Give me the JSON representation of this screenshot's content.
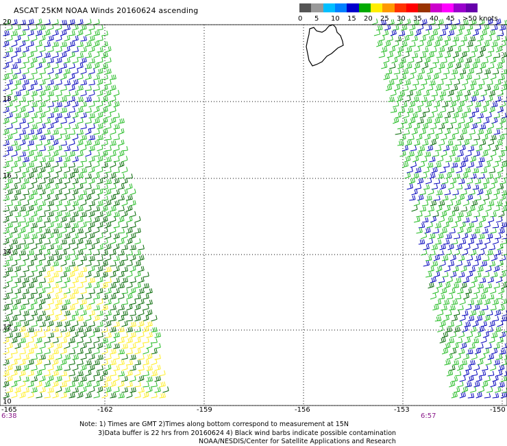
{
  "title": "ASCAT 25KM NOAA Winds 20160624 ascending",
  "color_scale": {
    "labels": [
      "0",
      "5",
      "10",
      "15",
      "20",
      "25",
      "30",
      "35",
      "40",
      "45",
      ">50 knots"
    ],
    "colors": [
      "#555555",
      "#999999",
      "#00bfff",
      "#0080ff",
      "#0000cc",
      "#00aa00",
      "#ffee00",
      "#ff9900",
      "#ff3300",
      "#ff0000",
      "#993300",
      "#cc00cc",
      "#ff00ff",
      "#9900cc",
      "#6600aa"
    ]
  },
  "axes": {
    "lon_labels": [
      "-165",
      "-162",
      "-159",
      "-156",
      "-153",
      "-150"
    ],
    "lat_labels": [
      "20",
      "18",
      "16",
      "14",
      "12",
      "10"
    ]
  },
  "time_labels": {
    "left": "6:38",
    "right": "6:57"
  },
  "notes": {
    "line1": "Note: 1) Times are GMT 2)Times along bottom correspond to measurement at 15N",
    "line2": "3)Data buffer is 22 hrs from 20160624 4) Black wind barbs indicate possible contamination",
    "line3": "NOAA/NESDIS/Center for Satellite Applications and Research"
  },
  "wind_colors": {
    "dark_blue": "#0000bb",
    "green": "#22bb22",
    "dark_green": "#006600",
    "yellow": "#ffee22"
  }
}
